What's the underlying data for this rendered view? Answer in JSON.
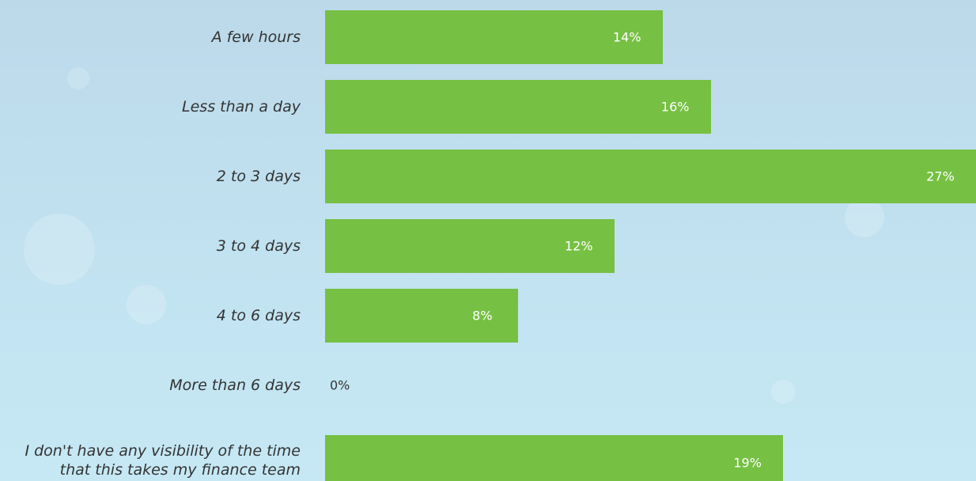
{
  "chart_data": {
    "type": "bar",
    "orientation": "horizontal",
    "categories": [
      "A few hours",
      "Less than a day",
      "2 to 3 days",
      "3 to 4 days",
      "4 to 6 days",
      "More than 6 days",
      "I don't have any visibility of the time\nthat this takes my finance team"
    ],
    "values": [
      14,
      16,
      27,
      12,
      8,
      0,
      19
    ],
    "value_labels": [
      "14%",
      "16%",
      "27%",
      "12%",
      "8%",
      "0%",
      "19%"
    ],
    "color": "#76c043",
    "xlim": [
      0,
      27
    ]
  }
}
